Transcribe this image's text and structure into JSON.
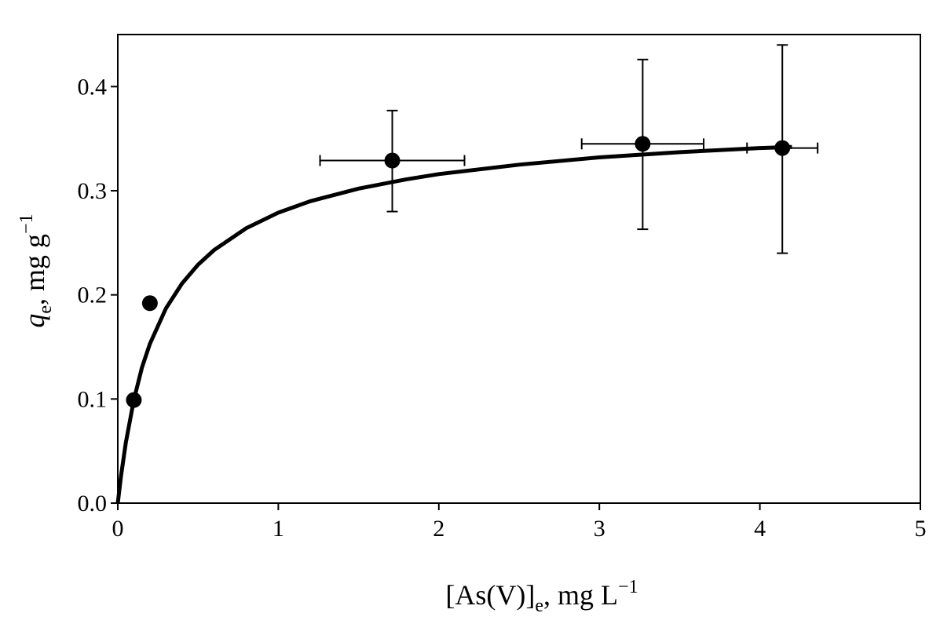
{
  "chart_data": {
    "type": "scatter",
    "title": "",
    "xlabel": {
      "main": "[As(V)]",
      "sub": "e",
      "unit": ", mg L",
      "sup": "−1"
    },
    "ylabel": {
      "main": "q",
      "sub": "e",
      "unit": ", mg g",
      "sup": "−1"
    },
    "xlim": [
      0,
      5
    ],
    "ylim": [
      0,
      0.45
    ],
    "xticks": [
      0,
      1,
      2,
      3,
      4,
      5
    ],
    "xtick_labels": [
      "0",
      "1",
      "2",
      "3",
      "4",
      "5"
    ],
    "yticks": [
      0,
      0.1,
      0.2,
      0.3,
      0.4
    ],
    "ytick_labels": [
      "0.0",
      "0.1",
      "0.2",
      "0.3",
      "0.4"
    ],
    "grid": false,
    "legend": "none",
    "colors": {
      "marker": "#000000",
      "line": "#000000"
    },
    "points": [
      {
        "x": 0.1,
        "y": 0.099,
        "xerr_low": 0,
        "xerr_high": 0,
        "yerr_low": 0,
        "yerr_high": 0
      },
      {
        "x": 0.2,
        "y": 0.192,
        "xerr_low": 0,
        "xerr_high": 0,
        "yerr_low": 0,
        "yerr_high": 0
      },
      {
        "x": 1.71,
        "y": 0.329,
        "xerr_low": 0.45,
        "xerr_high": 0.45,
        "yerr_low": 0.049,
        "yerr_high": 0.048
      },
      {
        "x": 3.27,
        "y": 0.345,
        "xerr_low": 0.38,
        "xerr_high": 0.38,
        "yerr_low": 0.082,
        "yerr_high": 0.081
      },
      {
        "x": 4.14,
        "y": 0.341,
        "xerr_low": 0.22,
        "xerr_high": 0.22,
        "yerr_low": 0.101,
        "yerr_high": 0.099
      }
    ],
    "fit_curve": {
      "x": [
        0,
        0.02,
        0.05,
        0.1,
        0.15,
        0.2,
        0.3,
        0.4,
        0.5,
        0.6,
        0.8,
        1.0,
        1.2,
        1.5,
        1.8,
        2.0,
        2.5,
        3.0,
        3.5,
        4.0,
        4.2
      ],
      "y": [
        0,
        0.026,
        0.058,
        0.099,
        0.13,
        0.153,
        0.187,
        0.211,
        0.229,
        0.243,
        0.264,
        0.279,
        0.29,
        0.302,
        0.311,
        0.316,
        0.325,
        0.332,
        0.337,
        0.341,
        0.342
      ]
    }
  }
}
